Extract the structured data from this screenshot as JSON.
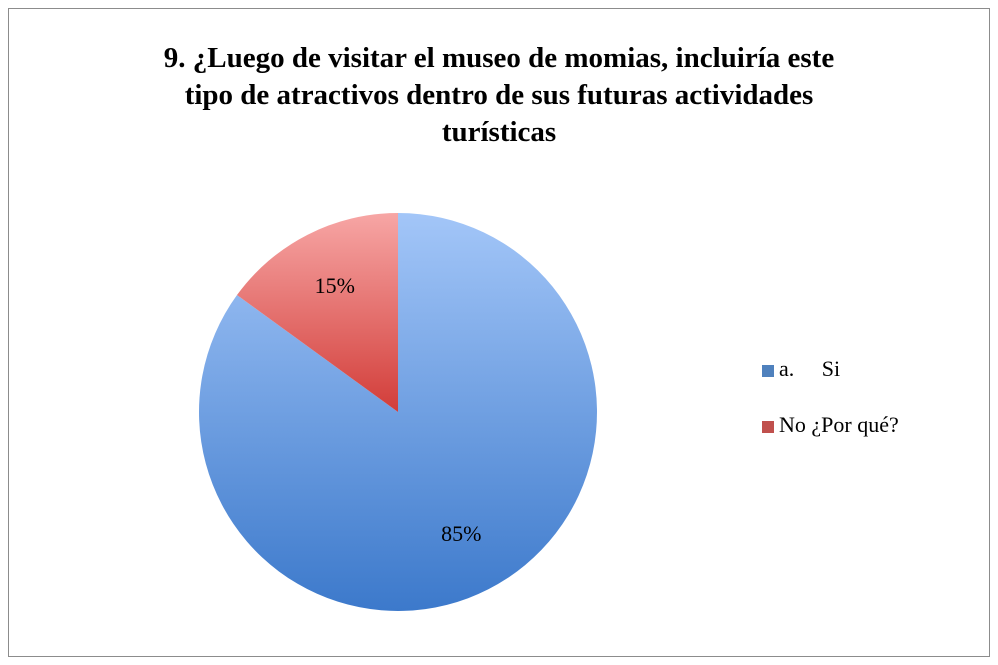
{
  "chart_data": {
    "type": "pie",
    "title": "9. ¿Luego de visitar el museo de momias, incluiría este tipo de atractivos dentro de sus futuras actividades turísticas",
    "categories": [
      "a.     Si",
      "No ¿Por qué?"
    ],
    "values": [
      85,
      15
    ],
    "value_labels": [
      "85%",
      "15%"
    ],
    "colors": [
      "#4f81bd",
      "#c0504d"
    ],
    "legend": "right"
  }
}
